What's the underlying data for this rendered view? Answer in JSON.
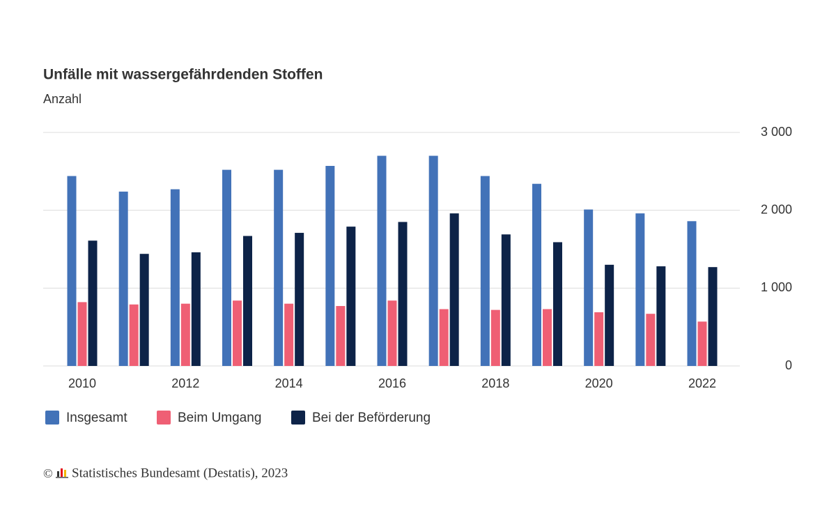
{
  "chart_data": {
    "type": "bar",
    "title": "Unfälle mit wassergefährdenden Stoffen",
    "subtitle": "Anzahl",
    "categories": [
      "2010",
      null,
      "2012",
      null,
      "2014",
      null,
      "2016",
      null,
      "2018",
      null,
      "2020",
      null,
      "2022"
    ],
    "series": [
      {
        "name": "Insgesamt",
        "color": "#4272b8",
        "values": [
          2440,
          2240,
          2270,
          2520,
          2520,
          2570,
          2700,
          2700,
          2440,
          2340,
          2010,
          1960,
          1860
        ]
      },
      {
        "name": "Beim Umgang",
        "color": "#ef5f74",
        "values": [
          820,
          790,
          800,
          840,
          800,
          770,
          840,
          730,
          720,
          730,
          690,
          670,
          570
        ]
      },
      {
        "name": "Bei der Beförderung",
        "color": "#0d2348",
        "values": [
          1610,
          1440,
          1460,
          1670,
          1710,
          1790,
          1850,
          1960,
          1690,
          1590,
          1300,
          1280,
          1270
        ]
      }
    ],
    "ylim": [
      0,
      3000
    ],
    "yticks": [
      0,
      {
        "value": 1000,
        "label": "1 000"
      },
      {
        "value": 2000,
        "label": "2 000"
      },
      {
        "value": 3000,
        "label": "3 000"
      }
    ],
    "grid": true,
    "legend": "bottom",
    "source": {
      "symbol": "©",
      "text": "Statistisches Bundesamt (Destatis), 2023"
    }
  }
}
